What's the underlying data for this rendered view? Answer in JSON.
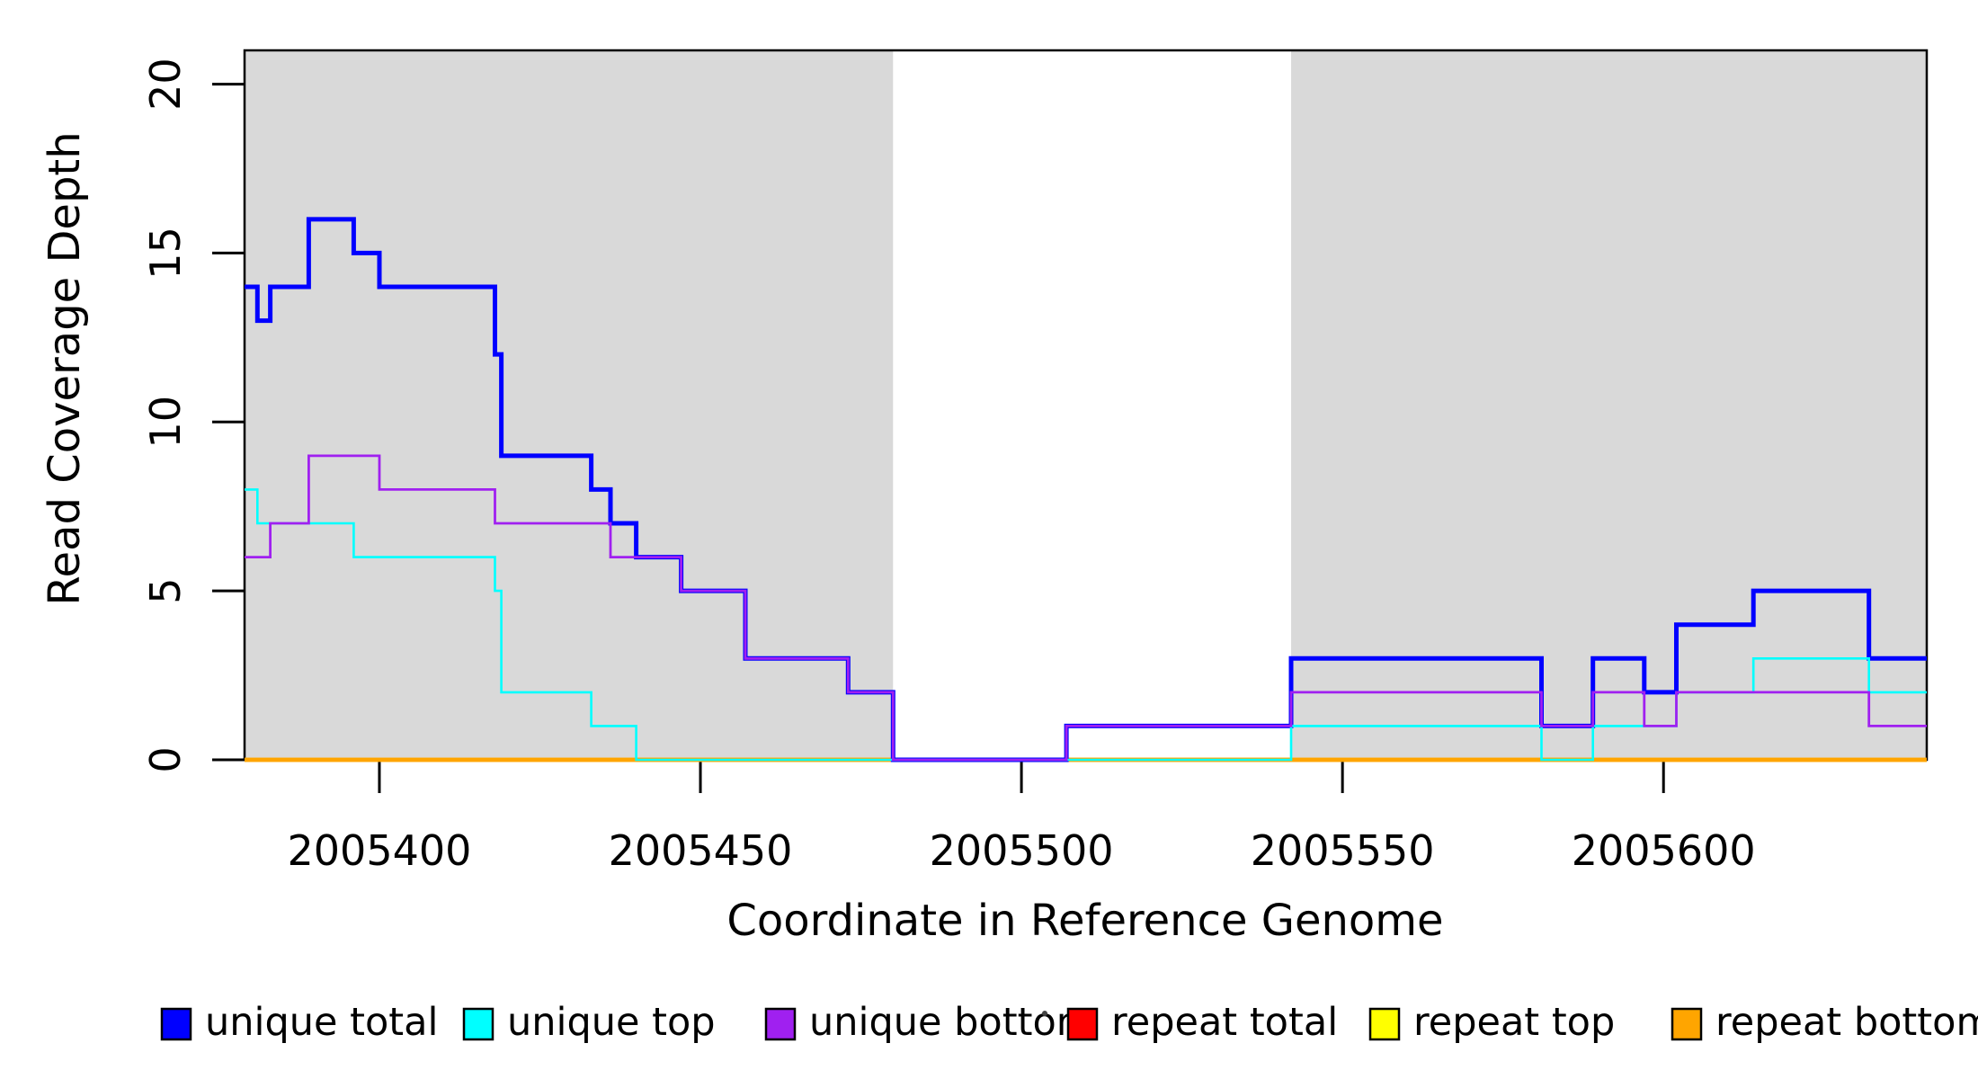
{
  "chart_data": {
    "type": "step",
    "title": "",
    "xlabel": "Coordinate in Reference Genome",
    "ylabel": "Read Coverage Depth",
    "xlim": [
      2005379,
      2005641
    ],
    "ylim": [
      0,
      21
    ],
    "x_ticks": [
      2005400,
      2005450,
      2005500,
      2005550,
      2005600
    ],
    "y_ticks": [
      0,
      5,
      10,
      15,
      20
    ],
    "grid": false,
    "legend_position": "bottom",
    "background_color": "#ffffff",
    "shaded_regions": [
      {
        "x0": 2005379,
        "x1": 2005480,
        "color": "#D9D9D9"
      },
      {
        "x0": 2005542,
        "x1": 2005641,
        "color": "#D9D9D9"
      }
    ],
    "series": [
      {
        "name": "unique total",
        "color": "#0000FF",
        "points": [
          [
            2005379,
            14
          ],
          [
            2005381,
            13
          ],
          [
            2005383,
            14
          ],
          [
            2005389,
            16
          ],
          [
            2005396,
            15
          ],
          [
            2005400,
            14
          ],
          [
            2005418,
            12
          ],
          [
            2005419,
            9
          ],
          [
            2005433,
            8
          ],
          [
            2005436,
            7
          ],
          [
            2005440,
            6
          ],
          [
            2005447,
            5
          ],
          [
            2005457,
            3
          ],
          [
            2005473,
            2
          ],
          [
            2005480,
            0
          ],
          [
            2005507,
            1
          ],
          [
            2005542,
            3
          ],
          [
            2005581,
            1
          ],
          [
            2005589,
            3
          ],
          [
            2005597,
            2
          ],
          [
            2005602,
            4
          ],
          [
            2005614,
            5
          ],
          [
            2005632,
            3
          ]
        ]
      },
      {
        "name": "unique top",
        "color": "#00FFFF",
        "points": [
          [
            2005379,
            8
          ],
          [
            2005381,
            7
          ],
          [
            2005396,
            6
          ],
          [
            2005418,
            5
          ],
          [
            2005419,
            2
          ],
          [
            2005433,
            1
          ],
          [
            2005440,
            0
          ],
          [
            2005542,
            1
          ],
          [
            2005581,
            0
          ],
          [
            2005589,
            1
          ],
          [
            2005602,
            2
          ],
          [
            2005614,
            3
          ],
          [
            2005632,
            2
          ]
        ]
      },
      {
        "name": "unique bottom",
        "color": "#A020F0",
        "points": [
          [
            2005379,
            6
          ],
          [
            2005383,
            7
          ],
          [
            2005389,
            9
          ],
          [
            2005400,
            8
          ],
          [
            2005418,
            7
          ],
          [
            2005436,
            6
          ],
          [
            2005447,
            5
          ],
          [
            2005457,
            3
          ],
          [
            2005473,
            2
          ],
          [
            2005480,
            0
          ],
          [
            2005507,
            1
          ],
          [
            2005542,
            2
          ],
          [
            2005581,
            1
          ],
          [
            2005589,
            2
          ],
          [
            2005597,
            1
          ],
          [
            2005602,
            2
          ],
          [
            2005632,
            1
          ]
        ]
      },
      {
        "name": "repeat total",
        "color": "#FF0000",
        "points": [
          [
            2005379,
            0
          ]
        ]
      },
      {
        "name": "repeat top",
        "color": "#FFFF00",
        "points": [
          [
            2005379,
            0
          ]
        ]
      },
      {
        "name": "repeat bottom",
        "color": "#FFA500",
        "points": [
          [
            2005379,
            0
          ]
        ]
      }
    ],
    "decorations": {
      "small_dot_before_repeat_total": true
    }
  }
}
